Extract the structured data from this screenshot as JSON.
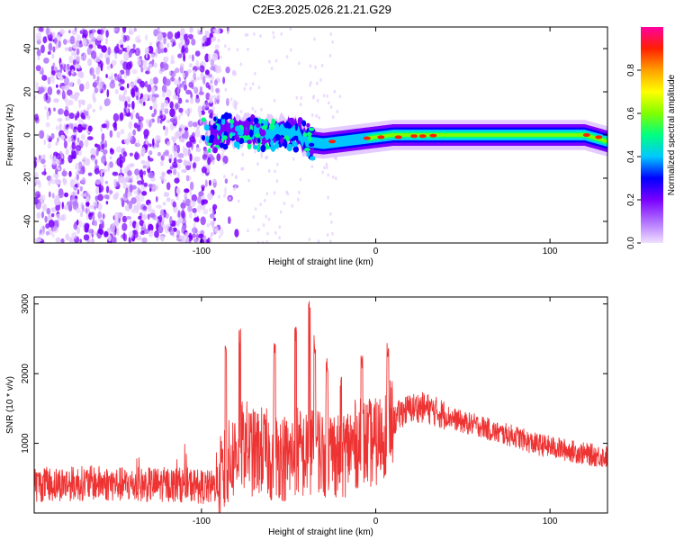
{
  "title": "C2E3.2025.026.21.21.G29",
  "chart_data": [
    {
      "type": "heatmap",
      "xlabel": "Height of straight line (km)",
      "ylabel": "Frequency (Hz)",
      "xlim": [
        -196,
        133
      ],
      "ylim": [
        -50,
        50
      ],
      "x_ticks": [
        -100,
        0,
        100
      ],
      "y_ticks": [
        -40,
        -20,
        0,
        20,
        40
      ],
      "colorbar": {
        "label": "Normalized spectral amplitude",
        "range": [
          0,
          1
        ],
        "ticks": [
          0.0,
          0.2,
          0.4,
          0.6,
          0.8
        ],
        "colormap": [
          "#f0e0ff",
          "#b070ff",
          "#7a00ff",
          "#0000ff",
          "#00c8ff",
          "#00ff80",
          "#80ff00",
          "#ffff00",
          "#ffa000",
          "#ff2000",
          "#ff00a0"
        ]
      },
      "features": {
        "noise_region_x": [
          -196,
          -90
        ],
        "transition_x": [
          -90,
          -40
        ],
        "line_path": [
          [
            -100,
            0
          ],
          [
            -80,
            2
          ],
          [
            -60,
            1
          ],
          [
            -50,
            2
          ],
          [
            -45,
            1
          ],
          [
            -40,
            -3
          ],
          [
            -30,
            -4
          ],
          [
            -20,
            -3
          ],
          [
            -10,
            -2
          ],
          [
            0,
            -1
          ],
          [
            10,
            0
          ],
          [
            20,
            0
          ],
          [
            35,
            0
          ],
          [
            50,
            0
          ],
          [
            100,
            0
          ],
          [
            120,
            0
          ],
          [
            133,
            -3
          ]
        ]
      }
    },
    {
      "type": "line",
      "xlabel": "Height of straight line (km)",
      "ylabel": "SNR (10 * v/v)",
      "xlim": [
        -196,
        133
      ],
      "ylim": [
        0,
        3100
      ],
      "x_ticks": [
        -100,
        0,
        100
      ],
      "y_ticks": [
        1000,
        2000,
        3000
      ],
      "color": "#ee3333",
      "series": [
        {
          "x": [
            -196,
            -180,
            -160,
            -140,
            -120,
            -105,
            -95,
            -90,
            -85,
            -80,
            -75,
            -70,
            -65,
            -60,
            -55,
            -50,
            -45,
            -40,
            -35,
            -30,
            -25,
            -20,
            -15,
            -10,
            -5,
            0,
            5,
            10,
            15,
            20,
            25,
            30,
            35,
            40,
            50,
            60,
            70,
            80,
            90,
            100,
            110,
            120,
            133
          ],
          "y": [
            400,
            420,
            430,
            400,
            410,
            400,
            360,
            420,
            650,
            900,
            1000,
            850,
            900,
            800,
            850,
            750,
            900,
            800,
            1000,
            850,
            900,
            800,
            950,
            1000,
            1000,
            1000,
            1150,
            1300,
            1450,
            1500,
            1520,
            1500,
            1450,
            1400,
            1300,
            1250,
            1150,
            1100,
            1000,
            950,
            900,
            850,
            800
          ]
        }
      ],
      "peaks": [
        [
          -86,
          2500
        ],
        [
          -78,
          2650
        ],
        [
          -58,
          2450
        ],
        [
          -46,
          2700
        ],
        [
          -38,
          3100
        ],
        [
          -35,
          2550
        ],
        [
          -28,
          2250
        ],
        [
          -20,
          1950
        ],
        [
          -8,
          2300
        ],
        [
          7,
          2450
        ]
      ]
    }
  ]
}
